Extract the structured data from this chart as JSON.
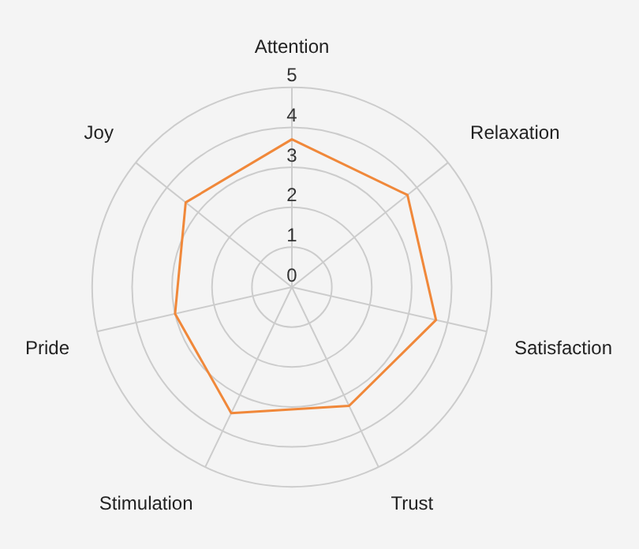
{
  "chart_data": {
    "type": "radar",
    "categories": [
      "Attention",
      "Relaxation",
      "Satisfaction",
      "Trust",
      "Stimulation",
      "Pride",
      "Joy"
    ],
    "series": [
      {
        "color": "#f0883a",
        "values": [
          3.7,
          3.7,
          3.7,
          3.3,
          3.5,
          3.0,
          3.4
        ]
      }
    ],
    "ylim": [
      0,
      5
    ],
    "yticks": [
      0,
      1,
      2,
      3,
      4,
      5
    ],
    "grid": true,
    "legend": false,
    "marker": "none",
    "line_style": "solid"
  }
}
